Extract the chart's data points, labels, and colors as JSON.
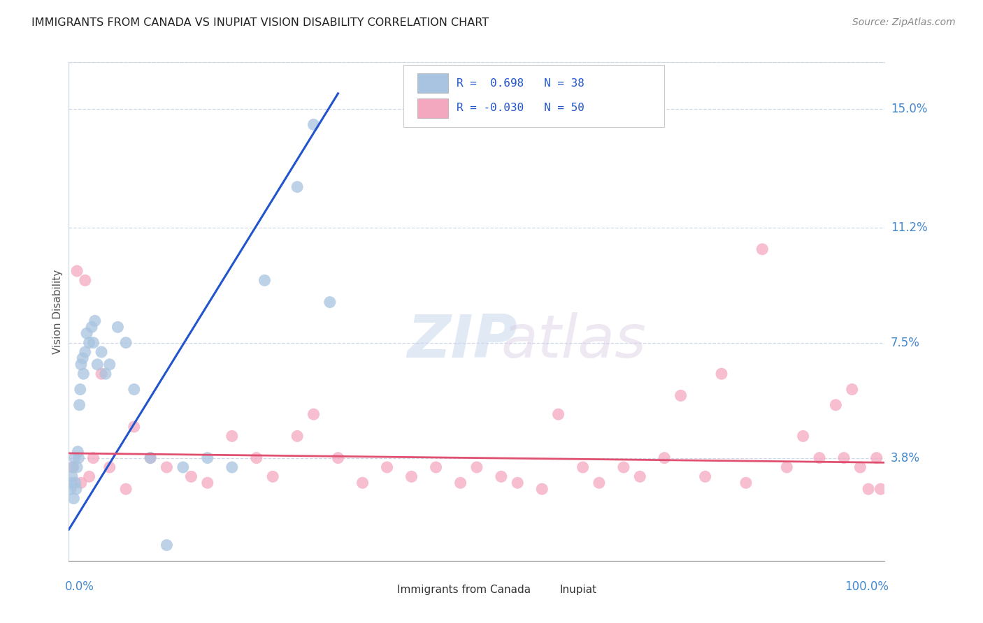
{
  "title": "IMMIGRANTS FROM CANADA VS INUPIAT VISION DISABILITY CORRELATION CHART",
  "source": "Source: ZipAtlas.com",
  "ylabel": "Vision Disability",
  "legend_label1": "Immigrants from Canada",
  "legend_label2": "Inupiat",
  "blue_color": "#a8c4e0",
  "pink_color": "#f4a8c0",
  "blue_line_color": "#2255cc",
  "pink_line_color": "#e05070",
  "watermark_zip": "ZIP",
  "watermark_atlas": "atlas",
  "background_color": "#ffffff",
  "grid_color": "#d0d8e8",
  "title_color": "#222222",
  "source_color": "#888888",
  "axis_label_color": "#4488cc",
  "ytick_vals": [
    3.8,
    7.5,
    11.2,
    15.0
  ],
  "ytick_labels": [
    "3.8%",
    "7.5%",
    "11.2%",
    "15.0%"
  ],
  "xlim": [
    0.0,
    100.0
  ],
  "ylim": [
    0.5,
    16.5
  ],
  "blue_scatter_x": [
    0.2,
    0.3,
    0.4,
    0.5,
    0.6,
    0.7,
    0.8,
    0.9,
    1.0,
    1.1,
    1.2,
    1.3,
    1.4,
    1.5,
    1.7,
    1.8,
    2.0,
    2.2,
    2.5,
    2.8,
    3.0,
    3.2,
    3.5,
    4.0,
    4.5,
    5.0,
    6.0,
    7.0,
    8.0,
    10.0,
    12.0,
    14.0,
    17.0,
    20.0,
    24.0,
    28.0,
    30.0,
    32.0
  ],
  "blue_scatter_y": [
    2.8,
    3.0,
    3.2,
    3.5,
    2.5,
    3.8,
    3.0,
    2.8,
    3.5,
    4.0,
    3.8,
    5.5,
    6.0,
    6.8,
    7.0,
    6.5,
    7.2,
    7.8,
    7.5,
    8.0,
    7.5,
    8.2,
    6.8,
    7.2,
    6.5,
    6.8,
    8.0,
    7.5,
    6.0,
    3.8,
    1.0,
    3.5,
    3.8,
    3.5,
    9.5,
    12.5,
    14.5,
    8.8
  ],
  "pink_scatter_x": [
    0.5,
    1.0,
    1.5,
    2.0,
    2.5,
    3.0,
    4.0,
    5.0,
    7.0,
    8.0,
    10.0,
    12.0,
    15.0,
    17.0,
    20.0,
    23.0,
    25.0,
    28.0,
    30.0,
    33.0,
    36.0,
    39.0,
    42.0,
    45.0,
    48.0,
    50.0,
    53.0,
    55.0,
    58.0,
    60.0,
    63.0,
    65.0,
    68.0,
    70.0,
    73.0,
    75.0,
    78.0,
    80.0,
    83.0,
    85.0,
    88.0,
    90.0,
    92.0,
    94.0,
    95.0,
    96.0,
    97.0,
    98.0,
    99.0,
    99.5
  ],
  "pink_scatter_y": [
    3.5,
    9.8,
    3.0,
    9.5,
    3.2,
    3.8,
    6.5,
    3.5,
    2.8,
    4.8,
    3.8,
    3.5,
    3.2,
    3.0,
    4.5,
    3.8,
    3.2,
    4.5,
    5.2,
    3.8,
    3.0,
    3.5,
    3.2,
    3.5,
    3.0,
    3.5,
    3.2,
    3.0,
    2.8,
    5.2,
    3.5,
    3.0,
    3.5,
    3.2,
    3.8,
    5.8,
    3.2,
    6.5,
    3.0,
    10.5,
    3.5,
    4.5,
    3.8,
    5.5,
    3.8,
    6.0,
    3.5,
    2.8,
    3.8,
    2.8
  ],
  "blue_line_x0": 0.0,
  "blue_line_y0": 1.5,
  "blue_line_x1": 33.0,
  "blue_line_y1": 15.5,
  "pink_line_x0": 0.0,
  "pink_line_y0": 3.95,
  "pink_line_x1": 100.0,
  "pink_line_y1": 3.65
}
